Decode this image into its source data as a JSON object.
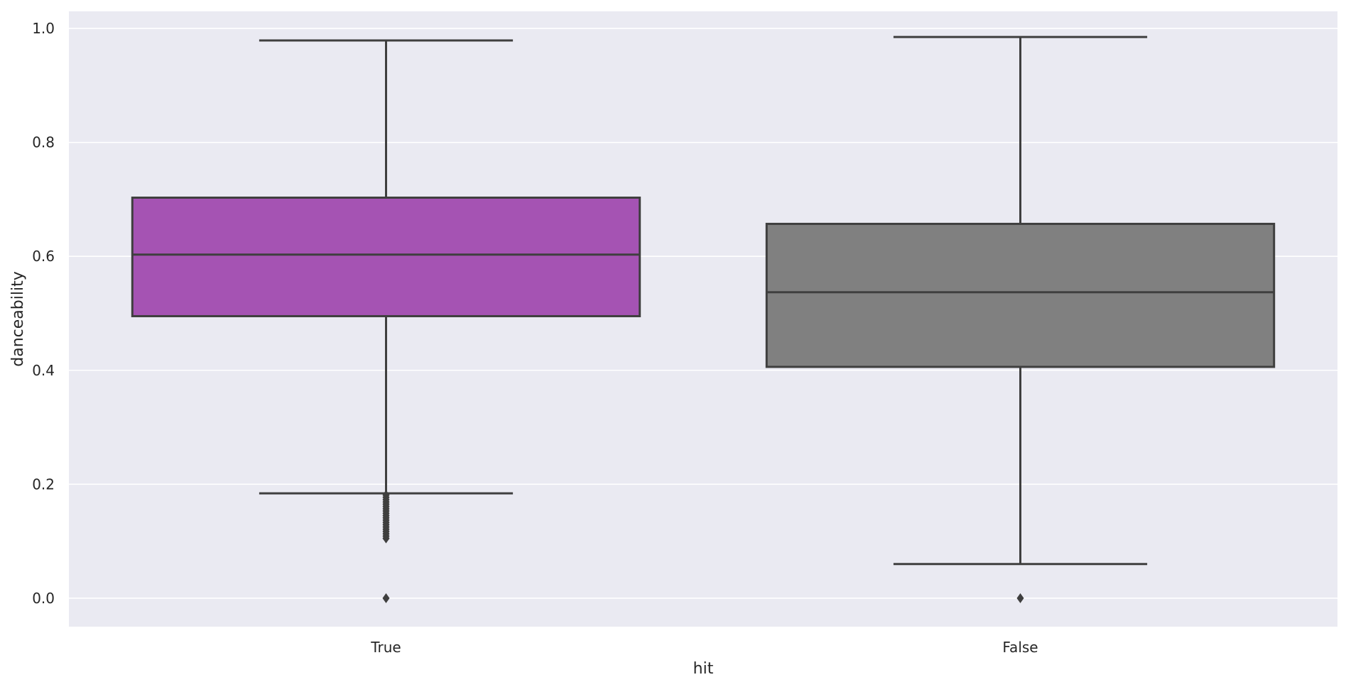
{
  "chart_data": {
    "type": "box",
    "xlabel": "hit",
    "ylabel": "danceability",
    "ylim": [
      -0.05,
      1.03
    ],
    "yticks": [
      0.0,
      0.2,
      0.4,
      0.6,
      0.8,
      1.0
    ],
    "ytick_labels": [
      "0.0",
      "0.2",
      "0.4",
      "0.6",
      "0.8",
      "1.0"
    ],
    "categories": [
      "True",
      "False"
    ],
    "grid": true,
    "background_color": "#eaeaf2",
    "grid_color": "#ffffff",
    "line_color": "#3f3f3f",
    "boxes": [
      {
        "category": "True",
        "color": "#a553b3",
        "whisker_low": 0.184,
        "q1": 0.495,
        "median": 0.603,
        "q3": 0.703,
        "whisker_high": 0.979,
        "outliers": [
          0.181,
          0.177,
          0.173,
          0.169,
          0.165,
          0.161,
          0.157,
          0.153,
          0.149,
          0.145,
          0.141,
          0.137,
          0.133,
          0.129,
          0.125,
          0.121,
          0.117,
          0.113,
          0.109,
          0.105,
          0.0
        ]
      },
      {
        "category": "False",
        "color": "#808080",
        "whisker_low": 0.06,
        "q1": 0.406,
        "median": 0.537,
        "q3": 0.657,
        "whisker_high": 0.985,
        "outliers": [
          0.0
        ]
      }
    ]
  }
}
